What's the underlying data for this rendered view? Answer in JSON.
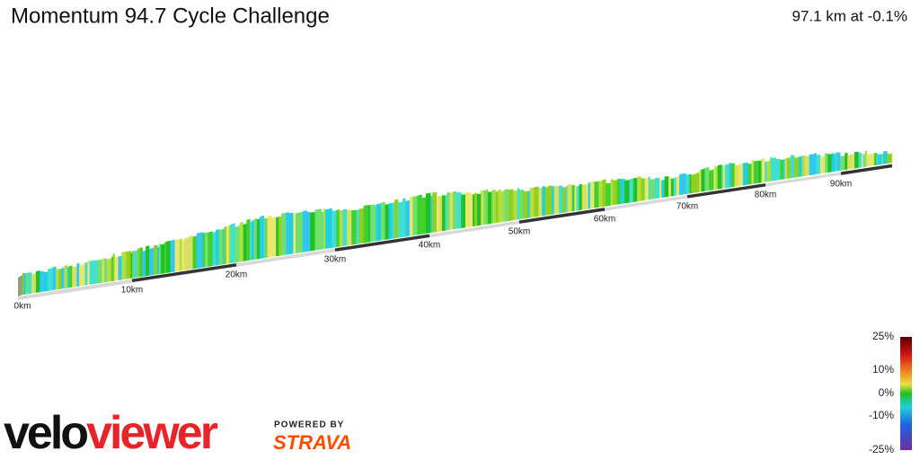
{
  "header": {
    "title": "Momentum 94.7 Cycle Challenge",
    "summary": "97.1 km at -0.1%"
  },
  "profile": {
    "km_labels": [
      "0km",
      "10km",
      "20km",
      "30km",
      "40km",
      "50km",
      "60km",
      "70km",
      "80km",
      "90km"
    ]
  },
  "legend": {
    "ticks": [
      "25%",
      "10%",
      "0%",
      "-10%",
      "-25%"
    ]
  },
  "branding": {
    "velo": "velo",
    "viewer": "viewer",
    "powered_by": "POWERED BY",
    "strava": "STRAVA"
  }
}
